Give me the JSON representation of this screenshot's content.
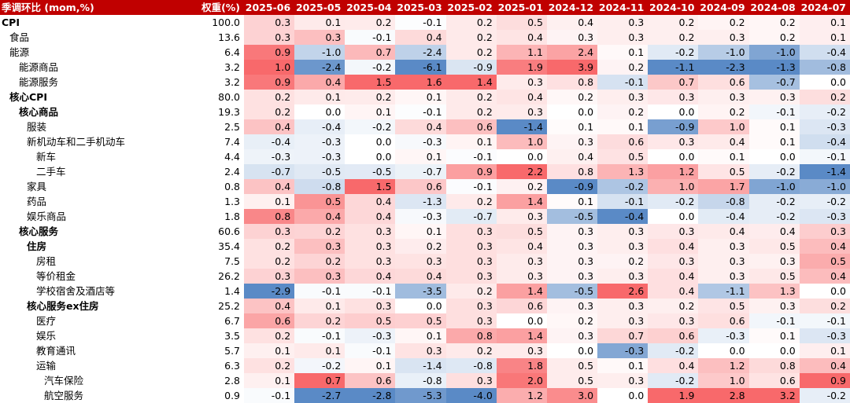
{
  "header": {
    "label": "季调环比 (mom,%)",
    "weight": "权重(%)",
    "months": [
      "2025-06",
      "2025-05",
      "2025-04",
      "2025-03",
      "2025-02",
      "2025-01",
      "2024-12",
      "2024-11",
      "2024-10",
      "2024-09",
      "2024-08",
      "2024-07"
    ]
  },
  "rows": [
    {
      "label": "CPI",
      "indent": 0,
      "bold": true,
      "weight": "100.0",
      "values": [
        "0.3",
        "0.1",
        "0.2",
        "-0.1",
        "0.2",
        "0.5",
        "0.4",
        "0.3",
        "0.2",
        "0.2",
        "0.2",
        "0.1"
      ]
    },
    {
      "label": "食品",
      "indent": 1,
      "bold": false,
      "weight": "13.6",
      "values": [
        "0.3",
        "0.3",
        "-0.1",
        "0.4",
        "0.2",
        "0.4",
        "0.3",
        "0.3",
        "0.2",
        "0.3",
        "0.2",
        "0.1"
      ]
    },
    {
      "label": "能源",
      "indent": 1,
      "bold": false,
      "weight": "6.4",
      "values": [
        "0.9",
        "-1.0",
        "0.7",
        "-2.4",
        "0.2",
        "1.1",
        "2.4",
        "0.1",
        "-0.2",
        "-1.0",
        "-1.0",
        "-0.4"
      ]
    },
    {
      "label": "能源商品",
      "indent": 2,
      "bold": false,
      "weight": "3.2",
      "values": [
        "1.0",
        "-2.4",
        "-0.2",
        "-6.1",
        "-0.9",
        "1.9",
        "3.9",
        "0.2",
        "-1.1",
        "-2.3",
        "-1.3",
        "-0.8"
      ]
    },
    {
      "label": "能源服务",
      "indent": 2,
      "bold": false,
      "weight": "3.2",
      "values": [
        "0.9",
        "0.4",
        "1.5",
        "1.6",
        "1.4",
        "0.3",
        "0.8",
        "-0.1",
        "0.7",
        "0.6",
        "-0.7",
        "0.0"
      ]
    },
    {
      "label": "核心CPI",
      "indent": 1,
      "bold": true,
      "weight": "80.0",
      "values": [
        "0.2",
        "0.1",
        "0.2",
        "0.1",
        "0.2",
        "0.4",
        "0.2",
        "0.3",
        "0.3",
        "0.3",
        "0.3",
        "0.2"
      ]
    },
    {
      "label": "核心商品",
      "indent": 2,
      "bold": true,
      "weight": "19.3",
      "values": [
        "0.2",
        "0.0",
        "0.1",
        "-0.1",
        "0.2",
        "0.3",
        "0.0",
        "0.2",
        "0.0",
        "0.2",
        "-0.1",
        "-0.2"
      ]
    },
    {
      "label": "服装",
      "indent": 3,
      "bold": false,
      "weight": "2.5",
      "values": [
        "0.4",
        "-0.4",
        "-0.2",
        "0.4",
        "0.6",
        "-1.4",
        "0.1",
        "0.1",
        "-0.9",
        "1.0",
        "0.1",
        "-0.3"
      ]
    },
    {
      "label": "新机动车和二手机动车",
      "indent": 3,
      "bold": false,
      "weight": "7.4",
      "values": [
        "-0.4",
        "-0.3",
        "0.0",
        "-0.3",
        "0.1",
        "1.0",
        "0.3",
        "0.6",
        "0.3",
        "0.4",
        "0.1",
        "-0.4"
      ]
    },
    {
      "label": "新车",
      "indent": 4,
      "bold": false,
      "weight": "4.4",
      "values": [
        "-0.3",
        "-0.3",
        "0.0",
        "0.1",
        "-0.1",
        "0.0",
        "0.4",
        "0.5",
        "0.0",
        "0.1",
        "0.0",
        "-0.1"
      ]
    },
    {
      "label": "二手车",
      "indent": 4,
      "bold": false,
      "weight": "2.4",
      "values": [
        "-0.7",
        "-0.5",
        "-0.5",
        "-0.7",
        "0.9",
        "2.2",
        "0.8",
        "1.3",
        "1.2",
        "0.5",
        "-0.2",
        "-1.4"
      ]
    },
    {
      "label": "家具",
      "indent": 3,
      "bold": false,
      "weight": "0.8",
      "values": [
        "0.4",
        "-0.8",
        "1.5",
        "0.6",
        "-0.1",
        "0.2",
        "-0.9",
        "-0.2",
        "1.0",
        "1.7",
        "-1.0",
        "-1.0"
      ]
    },
    {
      "label": "药品",
      "indent": 3,
      "bold": false,
      "weight": "1.3",
      "values": [
        "0.1",
        "0.5",
        "0.4",
        "-1.3",
        "0.2",
        "1.4",
        "0.1",
        "-0.1",
        "-0.2",
        "-0.8",
        "-0.2",
        "-0.2"
      ]
    },
    {
      "label": "娱乐商品",
      "indent": 3,
      "bold": false,
      "weight": "1.8",
      "values": [
        "0.8",
        "0.4",
        "0.4",
        "-0.3",
        "-0.7",
        "0.3",
        "-0.5",
        "-0.4",
        "0.0",
        "-0.4",
        "-0.2",
        "-0.3"
      ]
    },
    {
      "label": "核心服务",
      "indent": 2,
      "bold": true,
      "weight": "60.6",
      "values": [
        "0.3",
        "0.2",
        "0.3",
        "0.1",
        "0.3",
        "0.5",
        "0.3",
        "0.3",
        "0.3",
        "0.4",
        "0.4",
        "0.3"
      ]
    },
    {
      "label": "住房",
      "indent": 3,
      "bold": true,
      "weight": "35.4",
      "values": [
        "0.2",
        "0.3",
        "0.3",
        "0.2",
        "0.3",
        "0.4",
        "0.3",
        "0.3",
        "0.4",
        "0.3",
        "0.5",
        "0.4"
      ]
    },
    {
      "label": "房租",
      "indent": 4,
      "bold": false,
      "weight": "7.5",
      "values": [
        "0.2",
        "0.2",
        "0.3",
        "0.3",
        "0.3",
        "0.3",
        "0.3",
        "0.2",
        "0.3",
        "0.3",
        "0.3",
        "0.5"
      ]
    },
    {
      "label": "等价租金",
      "indent": 4,
      "bold": false,
      "weight": "26.2",
      "values": [
        "0.3",
        "0.3",
        "0.4",
        "0.4",
        "0.3",
        "0.3",
        "0.3",
        "0.3",
        "0.4",
        "0.3",
        "0.5",
        "0.4"
      ]
    },
    {
      "label": "学校宿舍及酒店等",
      "indent": 4,
      "bold": false,
      "weight": "1.4",
      "values": [
        "-2.9",
        "-0.1",
        "-0.1",
        "-3.5",
        "0.2",
        "1.4",
        "-0.5",
        "2.6",
        "0.4",
        "-1.1",
        "1.3",
        "0.0"
      ]
    },
    {
      "label": "核心服务ex住房",
      "indent": 3,
      "bold": true,
      "weight": "25.2",
      "values": [
        "0.4",
        "0.1",
        "0.3",
        "0.0",
        "0.3",
        "0.6",
        "0.3",
        "0.3",
        "0.2",
        "0.5",
        "0.3",
        "0.2"
      ]
    },
    {
      "label": "医疗",
      "indent": 4,
      "bold": false,
      "weight": "6.7",
      "values": [
        "0.6",
        "0.2",
        "0.5",
        "0.5",
        "0.3",
        "0.0",
        "0.2",
        "0.3",
        "0.3",
        "0.6",
        "-0.1",
        "-0.1"
      ]
    },
    {
      "label": "娱乐",
      "indent": 4,
      "bold": false,
      "weight": "3.5",
      "values": [
        "0.2",
        "-0.1",
        "-0.3",
        "0.1",
        "0.8",
        "1.4",
        "0.3",
        "0.7",
        "0.6",
        "-0.3",
        "0.1",
        "-0.3"
      ]
    },
    {
      "label": "教育通讯",
      "indent": 4,
      "bold": false,
      "weight": "5.7",
      "values": [
        "0.1",
        "0.1",
        "-0.1",
        "0.3",
        "0.2",
        "0.3",
        "0.0",
        "-0.3",
        "-0.2",
        "0.0",
        "0.0",
        "0.1"
      ]
    },
    {
      "label": "运输",
      "indent": 4,
      "bold": false,
      "weight": "6.3",
      "values": [
        "0.2",
        "-0.2",
        "0.1",
        "-1.4",
        "-0.8",
        "1.8",
        "0.5",
        "0.1",
        "0.4",
        "1.2",
        "0.8",
        "0.4"
      ]
    },
    {
      "label": "汽车保险",
      "indent": 5,
      "bold": false,
      "weight": "2.8",
      "values": [
        "0.1",
        "0.7",
        "0.6",
        "-0.8",
        "0.3",
        "2.0",
        "0.5",
        "0.3",
        "-0.2",
        "1.0",
        "0.6",
        "0.9"
      ]
    },
    {
      "label": "航空服务",
      "indent": 5,
      "bold": false,
      "weight": "0.9",
      "values": [
        "-0.1",
        "-2.7",
        "-2.8",
        "-5.3",
        "-4.0",
        "1.2",
        "3.0",
        "0.0",
        "1.9",
        "2.8",
        "3.2",
        "-0.2"
      ]
    }
  ]
}
